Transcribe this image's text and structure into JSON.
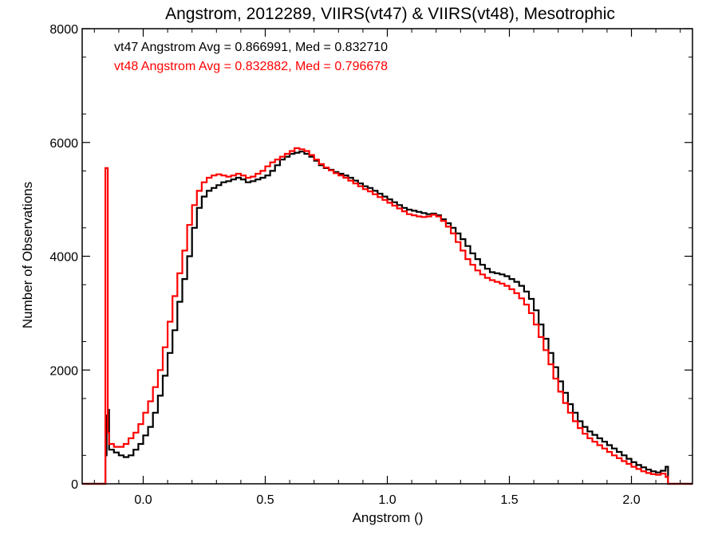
{
  "chart_data": {
    "type": "line",
    "style": "histogram-step",
    "title": "Angstrom, 2012289, VIIRS(vt47) & VIIRS(vt48), Mesotrophic",
    "xlabel": "Angstrom ()",
    "ylabel": "Number of Observations",
    "xlim": [
      -0.25,
      2.25
    ],
    "ylim": [
      0,
      8000
    ],
    "xticks": [
      0.0,
      0.5,
      1.0,
      1.5,
      2.0
    ],
    "xtick_labels": [
      "0.0",
      "0.5",
      "1.0",
      "1.5",
      "2.0"
    ],
    "yticks": [
      0,
      2000,
      4000,
      6000,
      8000
    ],
    "ytick_labels": [
      "0",
      "2000",
      "4000",
      "6000",
      "8000"
    ],
    "grid": false,
    "annotations": [
      {
        "text": "vt47 Angstrom Avg = 0.866991, Med = 0.832710",
        "color": "#000000"
      },
      {
        "text": "vt48 Angstrom Avg = 0.832882, Med = 0.796678",
        "color": "#ff0000"
      }
    ],
    "series": [
      {
        "color": "#000000",
        "points": [
          [
            -0.25,
            0
          ],
          [
            -0.16,
            0
          ],
          [
            -0.155,
            500
          ],
          [
            -0.15,
            1200
          ],
          [
            -0.145,
            1300
          ],
          [
            -0.14,
            600
          ],
          [
            -0.12,
            550
          ],
          [
            -0.1,
            500
          ],
          [
            -0.08,
            470
          ],
          [
            -0.06,
            500
          ],
          [
            -0.04,
            600
          ],
          [
            -0.02,
            700
          ],
          [
            0.0,
            850
          ],
          [
            0.02,
            1000
          ],
          [
            0.04,
            1250
          ],
          [
            0.06,
            1550
          ],
          [
            0.08,
            1900
          ],
          [
            0.1,
            2300
          ],
          [
            0.12,
            2700
          ],
          [
            0.14,
            3200
          ],
          [
            0.16,
            3600
          ],
          [
            0.18,
            4000
          ],
          [
            0.2,
            4500
          ],
          [
            0.22,
            4850
          ],
          [
            0.24,
            5050
          ],
          [
            0.26,
            5150
          ],
          [
            0.28,
            5200
          ],
          [
            0.3,
            5250
          ],
          [
            0.32,
            5300
          ],
          [
            0.34,
            5320
          ],
          [
            0.36,
            5350
          ],
          [
            0.38,
            5380
          ],
          [
            0.4,
            5350
          ],
          [
            0.42,
            5300
          ],
          [
            0.44,
            5320
          ],
          [
            0.46,
            5350
          ],
          [
            0.48,
            5380
          ],
          [
            0.5,
            5420
          ],
          [
            0.52,
            5500
          ],
          [
            0.54,
            5600
          ],
          [
            0.56,
            5700
          ],
          [
            0.58,
            5750
          ],
          [
            0.6,
            5800
          ],
          [
            0.62,
            5820
          ],
          [
            0.64,
            5840
          ],
          [
            0.66,
            5800
          ],
          [
            0.68,
            5750
          ],
          [
            0.7,
            5680
          ],
          [
            0.72,
            5600
          ],
          [
            0.74,
            5550
          ],
          [
            0.76,
            5520
          ],
          [
            0.78,
            5480
          ],
          [
            0.8,
            5450
          ],
          [
            0.82,
            5420
          ],
          [
            0.84,
            5380
          ],
          [
            0.86,
            5330
          ],
          [
            0.88,
            5280
          ],
          [
            0.9,
            5230
          ],
          [
            0.92,
            5200
          ],
          [
            0.94,
            5150
          ],
          [
            0.96,
            5100
          ],
          [
            0.98,
            5050
          ],
          [
            1.0,
            5000
          ],
          [
            1.02,
            4950
          ],
          [
            1.04,
            4900
          ],
          [
            1.06,
            4850
          ],
          [
            1.08,
            4820
          ],
          [
            1.1,
            4800
          ],
          [
            1.12,
            4780
          ],
          [
            1.14,
            4760
          ],
          [
            1.16,
            4740
          ],
          [
            1.18,
            4750
          ],
          [
            1.2,
            4720
          ],
          [
            1.22,
            4650
          ],
          [
            1.24,
            4580
          ],
          [
            1.26,
            4500
          ],
          [
            1.28,
            4400
          ],
          [
            1.3,
            4300
          ],
          [
            1.32,
            4180
          ],
          [
            1.34,
            4050
          ],
          [
            1.36,
            3950
          ],
          [
            1.38,
            3850
          ],
          [
            1.4,
            3780
          ],
          [
            1.42,
            3720
          ],
          [
            1.44,
            3700
          ],
          [
            1.46,
            3680
          ],
          [
            1.48,
            3650
          ],
          [
            1.5,
            3600
          ],
          [
            1.52,
            3550
          ],
          [
            1.54,
            3480
          ],
          [
            1.56,
            3380
          ],
          [
            1.58,
            3250
          ],
          [
            1.6,
            3050
          ],
          [
            1.62,
            2800
          ],
          [
            1.64,
            2550
          ],
          [
            1.66,
            2300
          ],
          [
            1.68,
            2050
          ],
          [
            1.7,
            1800
          ],
          [
            1.72,
            1600
          ],
          [
            1.74,
            1400
          ],
          [
            1.76,
            1250
          ],
          [
            1.78,
            1100
          ],
          [
            1.8,
            1000
          ],
          [
            1.82,
            920
          ],
          [
            1.84,
            860
          ],
          [
            1.86,
            800
          ],
          [
            1.88,
            740
          ],
          [
            1.9,
            680
          ],
          [
            1.92,
            620
          ],
          [
            1.94,
            560
          ],
          [
            1.96,
            500
          ],
          [
            1.98,
            440
          ],
          [
            2.0,
            380
          ],
          [
            2.02,
            330
          ],
          [
            2.04,
            290
          ],
          [
            2.06,
            250
          ],
          [
            2.08,
            220
          ],
          [
            2.1,
            200
          ],
          [
            2.12,
            230
          ],
          [
            2.14,
            300
          ],
          [
            2.15,
            0
          ],
          [
            2.25,
            0
          ]
        ]
      },
      {
        "color": "#ff0000",
        "points": [
          [
            -0.25,
            0
          ],
          [
            -0.16,
            0
          ],
          [
            -0.155,
            5550
          ],
          [
            -0.15,
            5550
          ],
          [
            -0.145,
            900
          ],
          [
            -0.14,
            700
          ],
          [
            -0.12,
            650
          ],
          [
            -0.1,
            650
          ],
          [
            -0.08,
            700
          ],
          [
            -0.06,
            800
          ],
          [
            -0.04,
            900
          ],
          [
            -0.02,
            1050
          ],
          [
            0.0,
            1250
          ],
          [
            0.02,
            1450
          ],
          [
            0.04,
            1700
          ],
          [
            0.06,
            2000
          ],
          [
            0.08,
            2400
          ],
          [
            0.1,
            2850
          ],
          [
            0.12,
            3300
          ],
          [
            0.14,
            3700
          ],
          [
            0.16,
            4100
          ],
          [
            0.18,
            4550
          ],
          [
            0.2,
            4900
          ],
          [
            0.22,
            5150
          ],
          [
            0.24,
            5300
          ],
          [
            0.26,
            5380
          ],
          [
            0.28,
            5420
          ],
          [
            0.3,
            5440
          ],
          [
            0.32,
            5420
          ],
          [
            0.34,
            5400
          ],
          [
            0.36,
            5420
          ],
          [
            0.38,
            5450
          ],
          [
            0.4,
            5420
          ],
          [
            0.42,
            5380
          ],
          [
            0.44,
            5400
          ],
          [
            0.46,
            5450
          ],
          [
            0.48,
            5500
          ],
          [
            0.5,
            5580
          ],
          [
            0.52,
            5650
          ],
          [
            0.54,
            5700
          ],
          [
            0.56,
            5750
          ],
          [
            0.58,
            5800
          ],
          [
            0.6,
            5850
          ],
          [
            0.62,
            5900
          ],
          [
            0.64,
            5880
          ],
          [
            0.66,
            5850
          ],
          [
            0.68,
            5780
          ],
          [
            0.7,
            5700
          ],
          [
            0.72,
            5620
          ],
          [
            0.74,
            5560
          ],
          [
            0.76,
            5510
          ],
          [
            0.78,
            5460
          ],
          [
            0.8,
            5420
          ],
          [
            0.82,
            5380
          ],
          [
            0.84,
            5330
          ],
          [
            0.86,
            5280
          ],
          [
            0.88,
            5230
          ],
          [
            0.9,
            5180
          ],
          [
            0.92,
            5140
          ],
          [
            0.94,
            5090
          ],
          [
            0.96,
            5040
          ],
          [
            0.98,
            4990
          ],
          [
            1.0,
            4940
          ],
          [
            1.02,
            4890
          ],
          [
            1.04,
            4840
          ],
          [
            1.06,
            4790
          ],
          [
            1.08,
            4740
          ],
          [
            1.1,
            4720
          ],
          [
            1.12,
            4700
          ],
          [
            1.14,
            4690
          ],
          [
            1.16,
            4700
          ],
          [
            1.18,
            4730
          ],
          [
            1.2,
            4700
          ],
          [
            1.22,
            4620
          ],
          [
            1.24,
            4520
          ],
          [
            1.26,
            4400
          ],
          [
            1.28,
            4250
          ],
          [
            1.3,
            4100
          ],
          [
            1.32,
            3950
          ],
          [
            1.34,
            3850
          ],
          [
            1.36,
            3750
          ],
          [
            1.38,
            3680
          ],
          [
            1.4,
            3620
          ],
          [
            1.42,
            3580
          ],
          [
            1.44,
            3550
          ],
          [
            1.46,
            3520
          ],
          [
            1.48,
            3480
          ],
          [
            1.5,
            3420
          ],
          [
            1.52,
            3350
          ],
          [
            1.54,
            3260
          ],
          [
            1.56,
            3150
          ],
          [
            1.58,
            3000
          ],
          [
            1.6,
            2800
          ],
          [
            1.62,
            2580
          ],
          [
            1.64,
            2350
          ],
          [
            1.66,
            2100
          ],
          [
            1.68,
            1850
          ],
          [
            1.7,
            1620
          ],
          [
            1.72,
            1420
          ],
          [
            1.74,
            1250
          ],
          [
            1.76,
            1100
          ],
          [
            1.78,
            980
          ],
          [
            1.8,
            880
          ],
          [
            1.82,
            800
          ],
          [
            1.84,
            740
          ],
          [
            1.86,
            680
          ],
          [
            1.88,
            620
          ],
          [
            1.9,
            560
          ],
          [
            1.92,
            500
          ],
          [
            1.94,
            450
          ],
          [
            1.96,
            400
          ],
          [
            1.98,
            350
          ],
          [
            2.0,
            300
          ],
          [
            2.02,
            260
          ],
          [
            2.04,
            220
          ],
          [
            2.06,
            190
          ],
          [
            2.08,
            170
          ],
          [
            2.1,
            160
          ],
          [
            2.12,
            180
          ],
          [
            2.14,
            120
          ],
          [
            2.15,
            0
          ],
          [
            2.25,
            0
          ]
        ]
      }
    ]
  }
}
